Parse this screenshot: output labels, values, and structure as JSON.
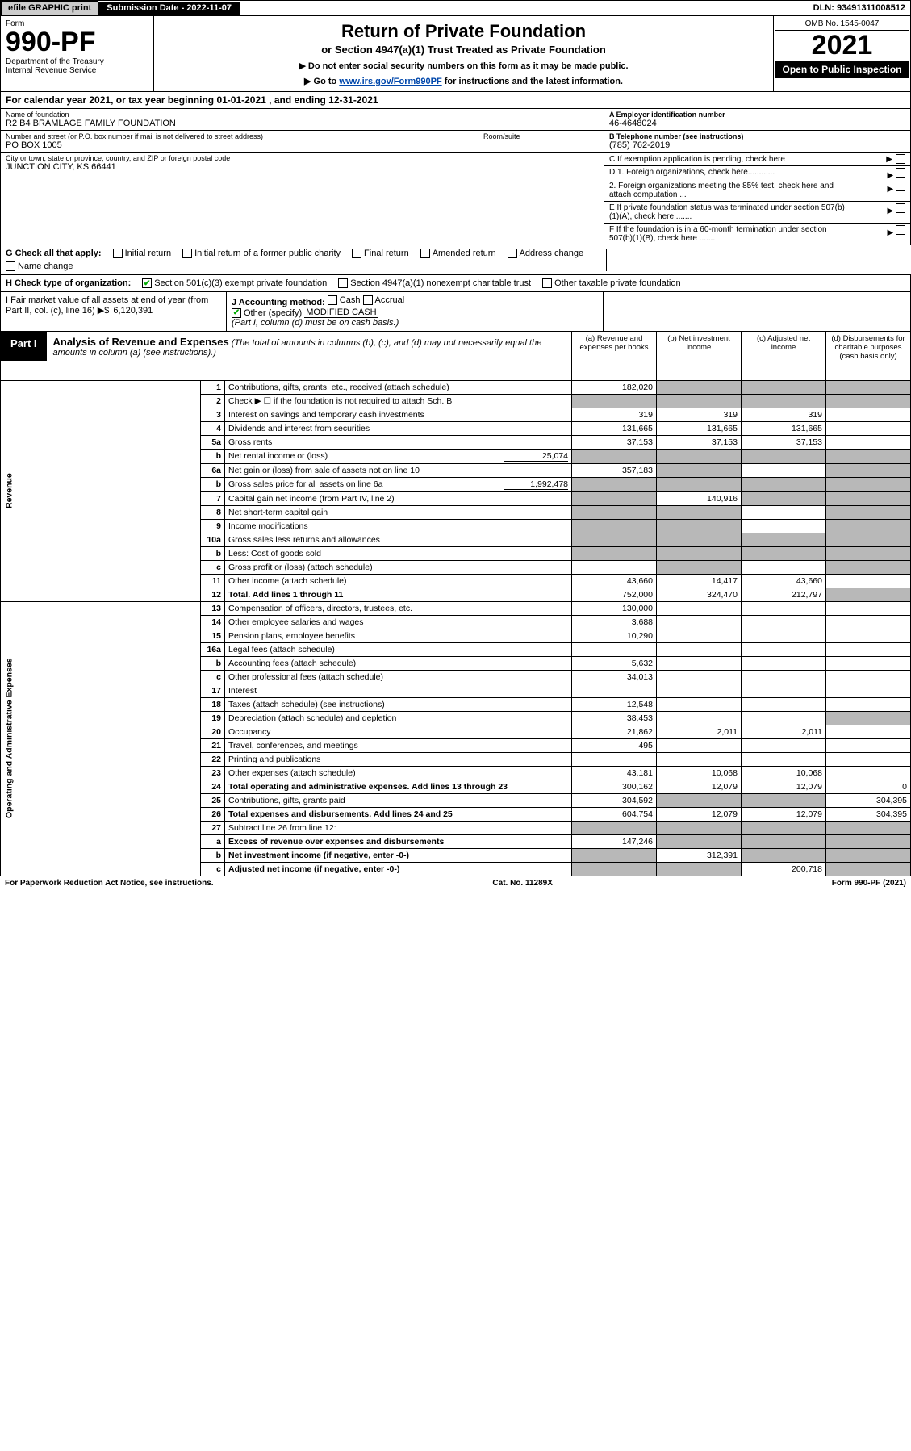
{
  "topbar": {
    "efile": "efile GRAPHIC print",
    "submission": "Submission Date - 2022-11-07",
    "dln": "DLN: 93491311008512"
  },
  "header": {
    "form_label": "Form",
    "form_no": "990-PF",
    "dept": "Department of the Treasury\nInternal Revenue Service",
    "title": "Return of Private Foundation",
    "subtitle": "or Section 4947(a)(1) Trust Treated as Private Foundation",
    "note1": "▶ Do not enter social security numbers on this form as it may be made public.",
    "note2_pre": "▶ Go to ",
    "note2_link": "www.irs.gov/Form990PF",
    "note2_post": " for instructions and the latest information.",
    "omb": "OMB No. 1545-0047",
    "year": "2021",
    "open": "Open to Public Inspection"
  },
  "cal": "For calendar year 2021, or tax year beginning 01-01-2021            , and ending 12-31-2021",
  "id": {
    "name_lbl": "Name of foundation",
    "name": "R2 B4 BRAMLAGE FAMILY FOUNDATION",
    "addr_lbl": "Number and street (or P.O. box number if mail is not delivered to street address)",
    "addr": "PO BOX 1005",
    "room_lbl": "Room/suite",
    "city_lbl": "City or town, state or province, country, and ZIP or foreign postal code",
    "city": "JUNCTION CITY, KS  66441",
    "ein_lbl": "A Employer identification number",
    "ein": "46-4648024",
    "tel_lbl": "B Telephone number (see instructions)",
    "tel": "(785) 762-2019",
    "c": "C If exemption application is pending, check here",
    "d1": "D 1. Foreign organizations, check here............",
    "d2": "2.  Foreign organizations meeting the 85% test, check here and attach computation ...",
    "e": "E  If private foundation status was terminated under section 507(b)(1)(A), check here .......",
    "f": "F  If the foundation is in a 60-month termination under section 507(b)(1)(B), check here .......",
    "g": "G Check all that apply:",
    "g_opts": [
      "Initial return",
      "Initial return of a former public charity",
      "Final return",
      "Amended return",
      "Address change",
      "Name change"
    ],
    "h": "H Check type of organization:",
    "h1": "Section 501(c)(3) exempt private foundation",
    "h2": "Section 4947(a)(1) nonexempt charitable trust",
    "h3": "Other taxable private foundation",
    "i": "I Fair market value of all assets at end of year (from Part II, col. (c), line 16) ▶$",
    "i_val": "6,120,391",
    "j": "J Accounting method:",
    "j_cash": "Cash",
    "j_accr": "Accrual",
    "j_other": "Other (specify)",
    "j_other_val": "MODIFIED CASH",
    "j_note": "(Part I, column (d) must be on cash basis.)"
  },
  "part1": {
    "label": "Part I",
    "title": "Analysis of Revenue and Expenses",
    "title_note": "(The total of amounts in columns (b), (c), and (d) may not necessarily equal the amounts in column (a) (see instructions).)",
    "cols": {
      "a": "(a)  Revenue and expenses per books",
      "b": "(b)  Net investment income",
      "c": "(c)  Adjusted net income",
      "d": "(d)  Disbursements for charitable purposes (cash basis only)"
    },
    "side_rev": "Revenue",
    "side_exp": "Operating and Administrative Expenses"
  },
  "rows": [
    {
      "n": "1",
      "d": "Contributions, gifts, grants, etc., received (attach schedule)",
      "a": "182,020",
      "b": "",
      "c": "",
      "dd": "",
      "shade": [
        "b",
        "c",
        "dd"
      ]
    },
    {
      "n": "2",
      "d": "Check ▶ ☐ if the foundation is not required to attach Sch. B",
      "a": "",
      "b": "",
      "c": "",
      "dd": "",
      "shade": [
        "a",
        "b",
        "c",
        "dd"
      ]
    },
    {
      "n": "3",
      "d": "Interest on savings and temporary cash investments",
      "a": "319",
      "b": "319",
      "c": "319",
      "dd": ""
    },
    {
      "n": "4",
      "d": "Dividends and interest from securities",
      "a": "131,665",
      "b": "131,665",
      "c": "131,665",
      "dd": ""
    },
    {
      "n": "5a",
      "d": "Gross rents",
      "a": "37,153",
      "b": "37,153",
      "c": "37,153",
      "dd": ""
    },
    {
      "n": "b",
      "d": "Net rental income or (loss)",
      "inline": "25,074",
      "a": "",
      "b": "",
      "c": "",
      "dd": "",
      "shade": [
        "a",
        "b",
        "c",
        "dd"
      ]
    },
    {
      "n": "6a",
      "d": "Net gain or (loss) from sale of assets not on line 10",
      "a": "357,183",
      "b": "",
      "c": "",
      "dd": "",
      "shade": [
        "b",
        "dd"
      ]
    },
    {
      "n": "b",
      "d": "Gross sales price for all assets on line 6a",
      "inline": "1,992,478",
      "a": "",
      "b": "",
      "c": "",
      "dd": "",
      "shade": [
        "a",
        "b",
        "c",
        "dd"
      ]
    },
    {
      "n": "7",
      "d": "Capital gain net income (from Part IV, line 2)",
      "a": "",
      "b": "140,916",
      "c": "",
      "dd": "",
      "shade": [
        "a",
        "c",
        "dd"
      ]
    },
    {
      "n": "8",
      "d": "Net short-term capital gain",
      "a": "",
      "b": "",
      "c": "",
      "dd": "",
      "shade": [
        "a",
        "b",
        "dd"
      ]
    },
    {
      "n": "9",
      "d": "Income modifications",
      "a": "",
      "b": "",
      "c": "",
      "dd": "",
      "shade": [
        "a",
        "b",
        "dd"
      ]
    },
    {
      "n": "10a",
      "d": "Gross sales less returns and allowances",
      "a": "",
      "b": "",
      "c": "",
      "dd": "",
      "shade": [
        "a",
        "b",
        "c",
        "dd"
      ]
    },
    {
      "n": "b",
      "d": "Less: Cost of goods sold",
      "a": "",
      "b": "",
      "c": "",
      "dd": "",
      "shade": [
        "a",
        "b",
        "c",
        "dd"
      ]
    },
    {
      "n": "c",
      "d": "Gross profit or (loss) (attach schedule)",
      "a": "",
      "b": "",
      "c": "",
      "dd": "",
      "shade": [
        "b",
        "dd"
      ]
    },
    {
      "n": "11",
      "d": "Other income (attach schedule)",
      "a": "43,660",
      "b": "14,417",
      "c": "43,660",
      "dd": ""
    },
    {
      "n": "12",
      "d": "Total. Add lines 1 through 11",
      "bold": true,
      "a": "752,000",
      "b": "324,470",
      "c": "212,797",
      "dd": "",
      "shade": [
        "dd"
      ]
    },
    {
      "n": "13",
      "d": "Compensation of officers, directors, trustees, etc.",
      "a": "130,000",
      "b": "",
      "c": "",
      "dd": ""
    },
    {
      "n": "14",
      "d": "Other employee salaries and wages",
      "a": "3,688",
      "b": "",
      "c": "",
      "dd": ""
    },
    {
      "n": "15",
      "d": "Pension plans, employee benefits",
      "a": "10,290",
      "b": "",
      "c": "",
      "dd": ""
    },
    {
      "n": "16a",
      "d": "Legal fees (attach schedule)",
      "a": "",
      "b": "",
      "c": "",
      "dd": ""
    },
    {
      "n": "b",
      "d": "Accounting fees (attach schedule)",
      "a": "5,632",
      "b": "",
      "c": "",
      "dd": ""
    },
    {
      "n": "c",
      "d": "Other professional fees (attach schedule)",
      "a": "34,013",
      "b": "",
      "c": "",
      "dd": ""
    },
    {
      "n": "17",
      "d": "Interest",
      "a": "",
      "b": "",
      "c": "",
      "dd": ""
    },
    {
      "n": "18",
      "d": "Taxes (attach schedule) (see instructions)",
      "a": "12,548",
      "b": "",
      "c": "",
      "dd": ""
    },
    {
      "n": "19",
      "d": "Depreciation (attach schedule) and depletion",
      "a": "38,453",
      "b": "",
      "c": "",
      "dd": "",
      "shade": [
        "dd"
      ]
    },
    {
      "n": "20",
      "d": "Occupancy",
      "a": "21,862",
      "b": "2,011",
      "c": "2,011",
      "dd": ""
    },
    {
      "n": "21",
      "d": "Travel, conferences, and meetings",
      "a": "495",
      "b": "",
      "c": "",
      "dd": ""
    },
    {
      "n": "22",
      "d": "Printing and publications",
      "a": "",
      "b": "",
      "c": "",
      "dd": ""
    },
    {
      "n": "23",
      "d": "Other expenses (attach schedule)",
      "a": "43,181",
      "b": "10,068",
      "c": "10,068",
      "dd": ""
    },
    {
      "n": "24",
      "d": "Total operating and administrative expenses. Add lines 13 through 23",
      "bold": true,
      "a": "300,162",
      "b": "12,079",
      "c": "12,079",
      "dd": "0"
    },
    {
      "n": "25",
      "d": "Contributions, gifts, grants paid",
      "a": "304,592",
      "b": "",
      "c": "",
      "dd": "304,395",
      "shade": [
        "b",
        "c"
      ]
    },
    {
      "n": "26",
      "d": "Total expenses and disbursements. Add lines 24 and 25",
      "bold": true,
      "a": "604,754",
      "b": "12,079",
      "c": "12,079",
      "dd": "304,395"
    },
    {
      "n": "27",
      "d": "Subtract line 26 from line 12:",
      "a": "",
      "b": "",
      "c": "",
      "dd": "",
      "shade": [
        "a",
        "b",
        "c",
        "dd"
      ]
    },
    {
      "n": "a",
      "d": "Excess of revenue over expenses and disbursements",
      "bold": true,
      "a": "147,246",
      "b": "",
      "c": "",
      "dd": "",
      "shade": [
        "b",
        "c",
        "dd"
      ]
    },
    {
      "n": "b",
      "d": "Net investment income (if negative, enter -0-)",
      "bold": true,
      "a": "",
      "b": "312,391",
      "c": "",
      "dd": "",
      "shade": [
        "a",
        "c",
        "dd"
      ]
    },
    {
      "n": "c",
      "d": "Adjusted net income (if negative, enter -0-)",
      "bold": true,
      "a": "",
      "b": "",
      "c": "200,718",
      "dd": "",
      "shade": [
        "a",
        "b",
        "dd"
      ]
    }
  ],
  "footer": {
    "left": "For Paperwork Reduction Act Notice, see instructions.",
    "mid": "Cat. No. 11289X",
    "right": "Form 990-PF (2021)"
  }
}
